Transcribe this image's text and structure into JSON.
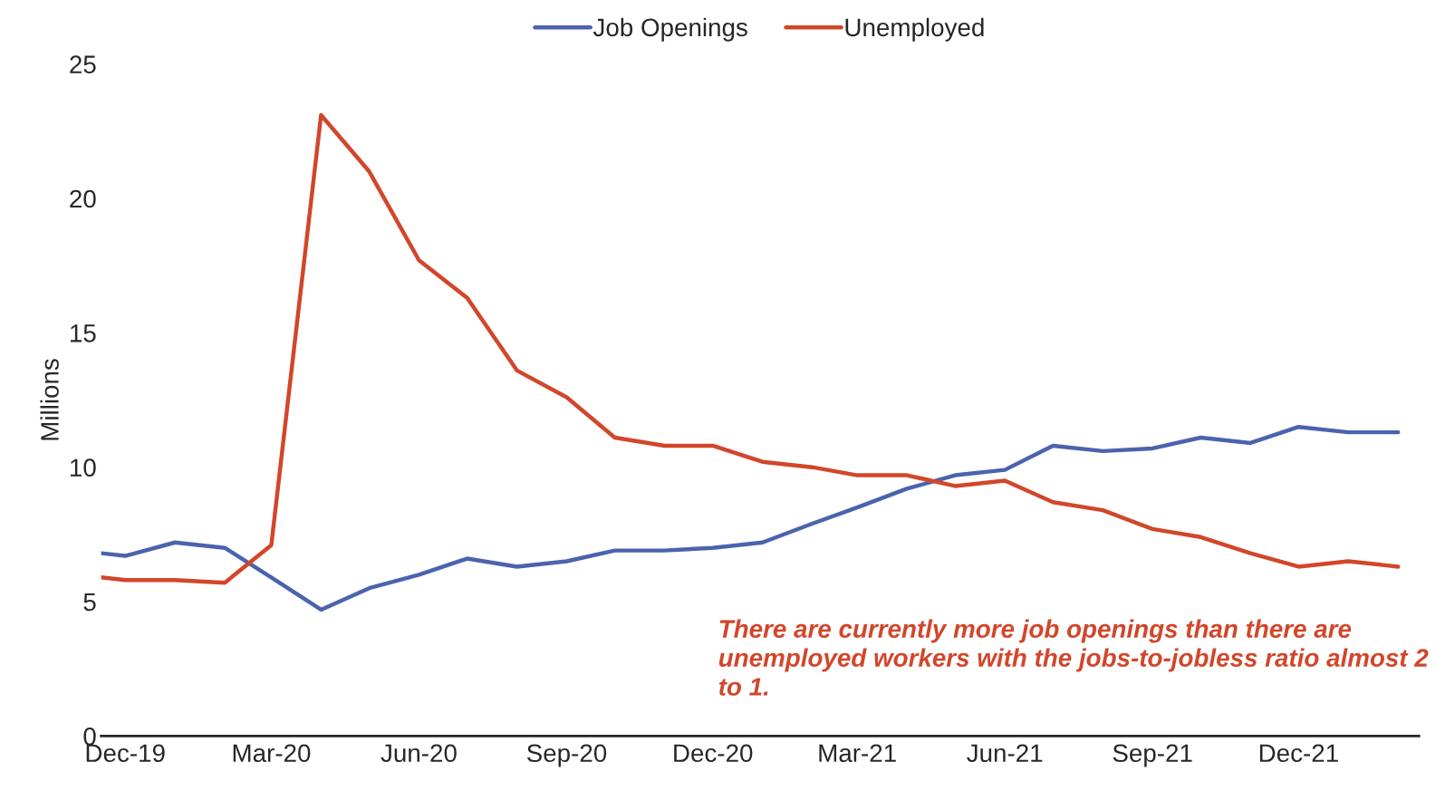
{
  "chart_data": {
    "type": "line",
    "ylabel": "Millions",
    "x": [
      "2019-11-16",
      "2019-12-01",
      "2020-01-01",
      "2020-02-01",
      "2020-03-01",
      "2020-04-01",
      "2020-05-01",
      "2020-06-01",
      "2020-07-01",
      "2020-08-01",
      "2020-09-01",
      "2020-10-01",
      "2020-11-01",
      "2020-12-01",
      "2021-01-01",
      "2021-02-01",
      "2021-03-01",
      "2021-04-01",
      "2021-05-01",
      "2021-06-01",
      "2021-07-01",
      "2021-08-01",
      "2021-09-01",
      "2021-10-01",
      "2021-11-01",
      "2021-12-01",
      "2022-01-01",
      "2022-02-01"
    ],
    "series": [
      {
        "name": "Job Openings",
        "color": "#4a63ad",
        "values": [
          6.8,
          6.7,
          7.2,
          7.0,
          5.9,
          4.7,
          5.5,
          6.0,
          6.6,
          6.3,
          6.5,
          6.9,
          6.9,
          7.0,
          7.2,
          7.9,
          8.5,
          9.2,
          9.7,
          9.9,
          10.8,
          10.6,
          10.7,
          11.1,
          10.9,
          11.5,
          11.3,
          11.3
        ]
      },
      {
        "name": "Unemployed",
        "color": "#d2462a",
        "values": [
          5.9,
          5.8,
          5.8,
          5.7,
          7.1,
          23.1,
          21.0,
          17.7,
          16.3,
          13.6,
          12.6,
          11.1,
          10.8,
          10.8,
          10.2,
          10.0,
          9.7,
          9.7,
          9.3,
          9.5,
          8.7,
          8.4,
          7.7,
          7.4,
          6.8,
          6.3,
          6.5,
          6.3
        ]
      }
    ],
    "xlim": [
      "2019-11-16",
      "2022-02-14"
    ],
    "xticks": [
      {
        "value": "2019-12-01",
        "label": "Dec-19"
      },
      {
        "value": "2020-03-01",
        "label": "Mar-20"
      },
      {
        "value": "2020-06-01",
        "label": "Jun-20"
      },
      {
        "value": "2020-09-01",
        "label": "Sep-20"
      },
      {
        "value": "2020-12-01",
        "label": "Dec-20"
      },
      {
        "value": "2021-03-01",
        "label": "Mar-21"
      },
      {
        "value": "2021-06-01",
        "label": "Jun-21"
      },
      {
        "value": "2021-09-01",
        "label": "Sep-21"
      },
      {
        "value": "2021-12-01",
        "label": "Dec-21"
      }
    ],
    "ylim": [
      0,
      25
    ],
    "yticks": [
      0,
      5,
      10,
      15,
      20,
      25
    ],
    "legend": "top",
    "grid": false,
    "marker": "none",
    "line_style": "solid",
    "annotations": [
      "There are currently more job openings than there are unemployed workers with the jobs-to-jobless ratio almost 2 to 1."
    ]
  }
}
